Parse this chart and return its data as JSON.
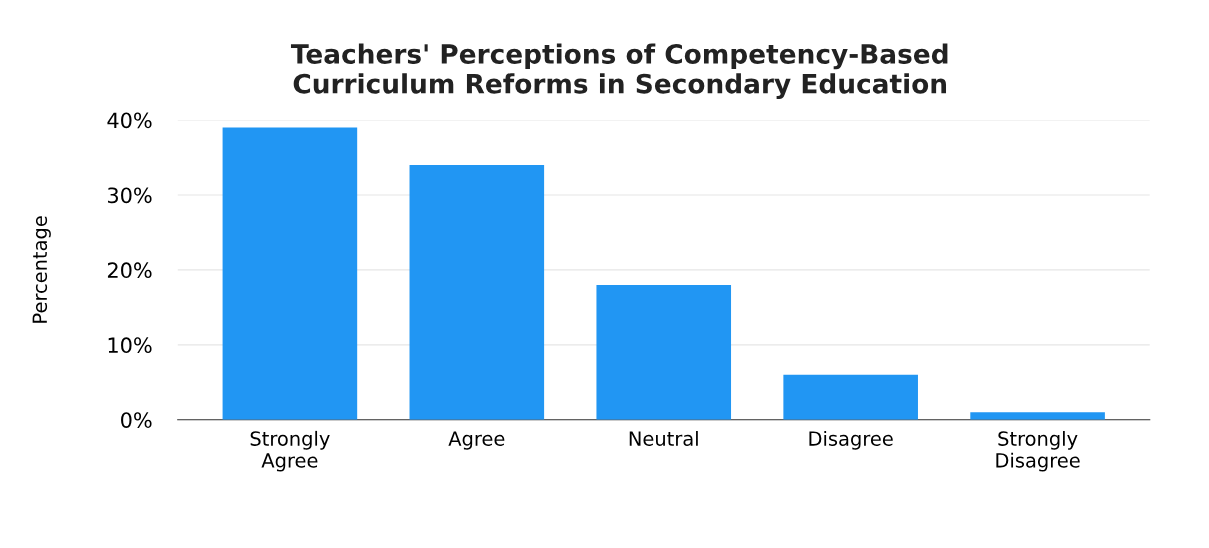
{
  "chart_data": {
    "type": "bar",
    "title": "Teachers' Perceptions of Competency-Based\nCurriculum Reforms in Secondary Education",
    "ylabel": "Percentage",
    "categories": [
      "Strongly\nAgree",
      "Agree",
      "Neutral",
      "Disagree",
      "Strongly\nDisagree"
    ],
    "values": [
      39,
      34,
      18,
      6,
      1
    ],
    "color": "#2196f3",
    "ylim": [
      0,
      40
    ],
    "yticks": [
      {
        "value": 0,
        "label": "0%"
      },
      {
        "value": 10,
        "label": "10%"
      },
      {
        "value": 20,
        "label": "20%"
      },
      {
        "value": 30,
        "label": "30%"
      },
      {
        "value": 40,
        "label": "40%"
      }
    ],
    "grid": "y"
  }
}
